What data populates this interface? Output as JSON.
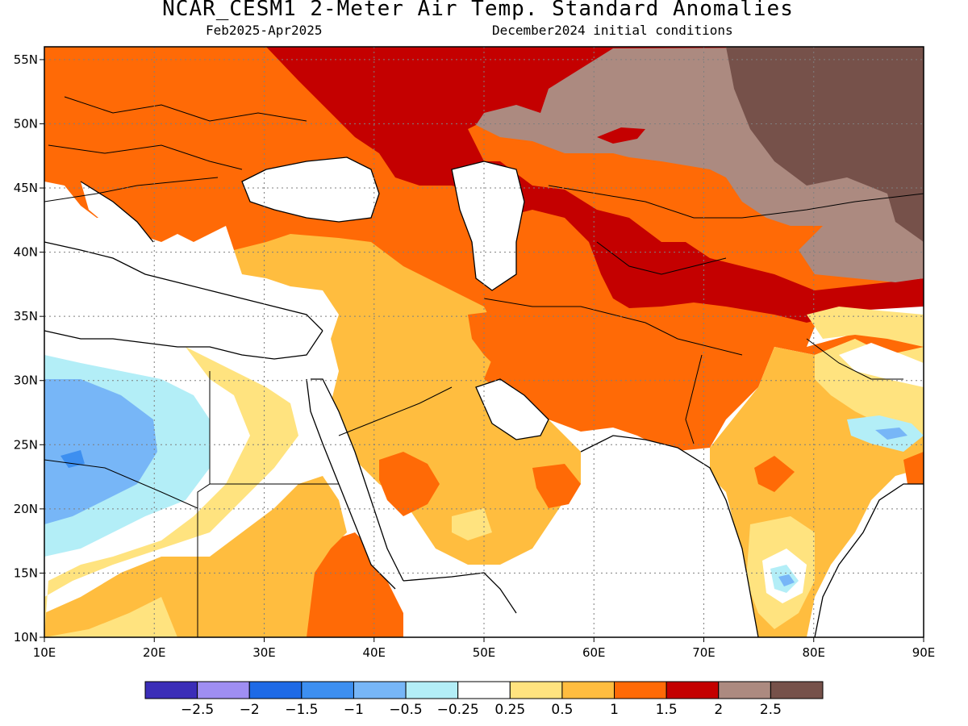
{
  "title": "NCAR_CESM1 2-Meter Air Temp. Standard Anomalies",
  "subtitle_left": "Feb2025-Apr2025",
  "subtitle_right": "December2024 initial conditions",
  "axes": {
    "lat_labels": [
      "55N",
      "50N",
      "45N",
      "40N",
      "35N",
      "30N",
      "25N",
      "20N",
      "15N",
      "10N"
    ],
    "lon_labels": [
      "10E",
      "20E",
      "30E",
      "40E",
      "50E",
      "60E",
      "70E",
      "80E",
      "90E"
    ],
    "lat_range": [
      10,
      56
    ],
    "lon_range": [
      10,
      90
    ],
    "grid": "dotted"
  },
  "colorbar": {
    "labels": [
      "-2.5",
      "-2",
      "-1.5",
      "-1",
      "-0.5",
      "-0.25",
      "0.25",
      "0.5",
      "1",
      "1.5",
      "2",
      "2.5"
    ],
    "colors": [
      "#3b2db8",
      "#9f8ef2",
      "#1e6ae6",
      "#3d8ff0",
      "#77b6f7",
      "#b3eef7",
      "#ffffff",
      "#ffe37f",
      "#ffbd3f",
      "#ff6a06",
      "#c40000",
      "#ac8a80",
      "#76514a"
    ]
  },
  "regions": [
    {
      "name": "europe-warm",
      "category": "1.5"
    },
    {
      "name": "central-asia-hot",
      "category": "2"
    },
    {
      "name": "mongolia-very-hot",
      "category": "2.5"
    },
    {
      "name": "arabia-warm",
      "category": "1"
    },
    {
      "name": "sahara-cool",
      "category": "-1"
    },
    {
      "name": "india-warm",
      "category": "1"
    }
  ]
}
